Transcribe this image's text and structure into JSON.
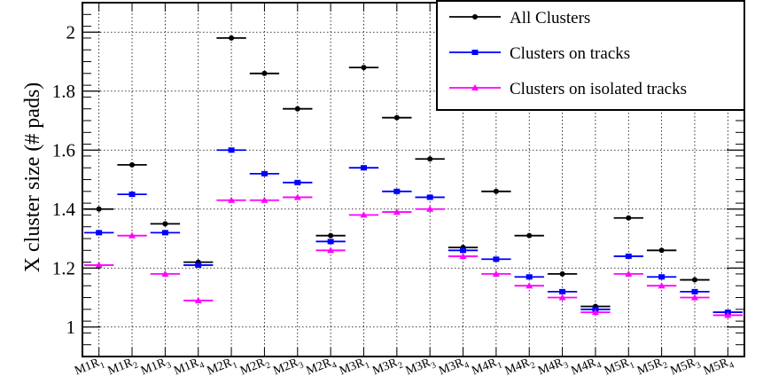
{
  "chart_data": {
    "type": "scatter",
    "ylabel": "X cluster size  (# pads)",
    "ylim": [
      0.9,
      2.1
    ],
    "yticks": [
      1,
      1.2,
      1.4,
      1.6,
      1.8,
      2
    ],
    "ytick_labels": [
      "1",
      "1.2",
      "1.4",
      "1.6",
      "1.8",
      "2"
    ],
    "grid": true,
    "legend_position": "top-right",
    "categories": [
      {
        "main": "M1R",
        "sub": "1"
      },
      {
        "main": "M1R",
        "sub": "2"
      },
      {
        "main": "M1R",
        "sub": "3"
      },
      {
        "main": "M1R",
        "sub": "4"
      },
      {
        "main": "M2R",
        "sub": "1"
      },
      {
        "main": "M2R",
        "sub": "2"
      },
      {
        "main": "M2R",
        "sub": "3"
      },
      {
        "main": "M2R",
        "sub": "4"
      },
      {
        "main": "M3R",
        "sub": "1"
      },
      {
        "main": "M3R",
        "sub": "2"
      },
      {
        "main": "M3R",
        "sub": "3"
      },
      {
        "main": "M3R",
        "sub": "4"
      },
      {
        "main": "M4R",
        "sub": "1"
      },
      {
        "main": "M4R",
        "sub": "2"
      },
      {
        "main": "M4R",
        "sub": "3"
      },
      {
        "main": "M4R",
        "sub": "4"
      },
      {
        "main": "M5R",
        "sub": "1"
      },
      {
        "main": "M5R",
        "sub": "2"
      },
      {
        "main": "M5R",
        "sub": "3"
      },
      {
        "main": "M5R",
        "sub": "4"
      }
    ],
    "series": [
      {
        "name": "All Clusters",
        "color": "#000000",
        "marker": "circle",
        "values": [
          1.4,
          1.55,
          1.35,
          1.22,
          1.98,
          1.86,
          1.74,
          1.31,
          1.88,
          1.71,
          1.57,
          1.27,
          1.46,
          1.31,
          1.18,
          1.07,
          1.37,
          1.26,
          1.16,
          1.05
        ]
      },
      {
        "name": "Clusters on tracks",
        "color": "#0000ff",
        "marker": "square",
        "values": [
          1.32,
          1.45,
          1.32,
          1.21,
          1.6,
          1.52,
          1.49,
          1.29,
          1.54,
          1.46,
          1.44,
          1.26,
          1.23,
          1.17,
          1.12,
          1.06,
          1.24,
          1.17,
          1.12,
          1.05
        ]
      },
      {
        "name": "Clusters on isolated tracks",
        "color": "#ff00ff",
        "marker": "triangle",
        "values": [
          1.21,
          1.31,
          1.18,
          1.09,
          1.43,
          1.43,
          1.44,
          1.26,
          1.38,
          1.39,
          1.4,
          1.24,
          1.18,
          1.14,
          1.1,
          1.05,
          1.18,
          1.14,
          1.1,
          1.04
        ]
      }
    ]
  }
}
